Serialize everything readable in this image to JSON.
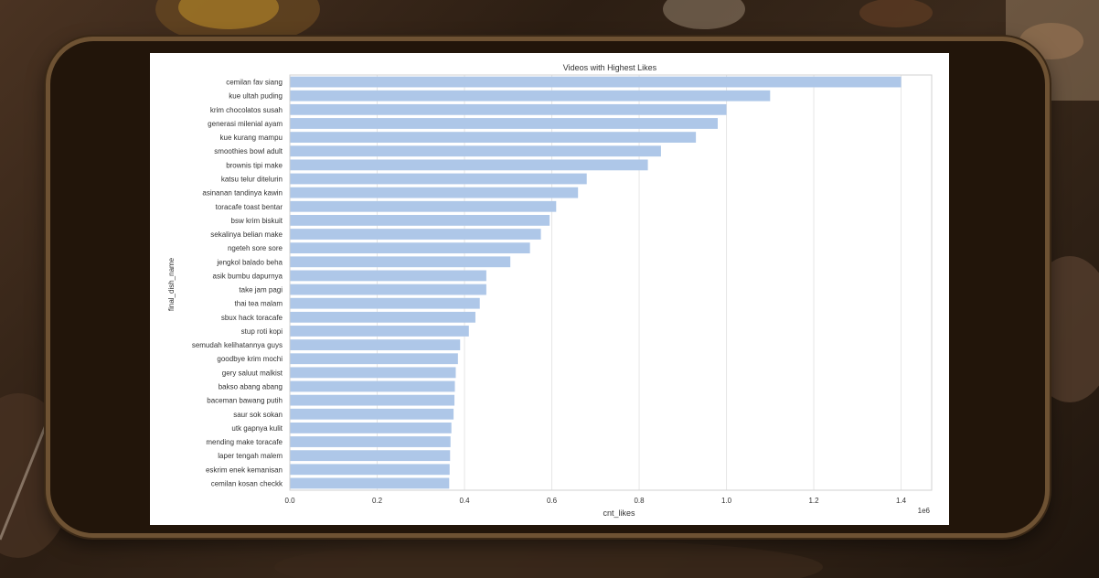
{
  "colors": {
    "bar": "#aec7e8",
    "grid": "#e6e6e6",
    "text": "#333333",
    "frame_border": "#6e5233",
    "frame_fill": "#22150a"
  },
  "chart_data": {
    "type": "bar",
    "orientation": "horizontal",
    "title": "Videos with Highest Likes",
    "xlabel": "cnt_likes",
    "ylabel": "final_dish_name",
    "x_offset_label": "1e6",
    "xlim": [
      0,
      1.47
    ],
    "xticks": [
      0.0,
      0.2,
      0.4,
      0.6,
      0.8,
      1.0,
      1.2,
      1.4
    ],
    "xtick_labels": [
      "0.0",
      "0.2",
      "0.4",
      "0.6",
      "0.8",
      "1.0",
      "1.2",
      "1.4"
    ],
    "grid": true,
    "categories": [
      "cemilan fav siang",
      "kue ultah puding",
      "krim chocolatos susah",
      "generasi milenial ayam",
      "kue kurang mampu",
      "smoothies bowl adult",
      "brownis tipi make",
      "katsu telur ditelurin",
      "asinanan tandinya kawin",
      "toracafe toast bentar",
      "bsw krim biskuit",
      "sekalinya belian make",
      "ngeteh sore sore",
      "jengkol balado beha",
      "asik bumbu dapurnya",
      "take jam pagi",
      "thai tea malam",
      "sbux hack toracafe",
      "stup roti kopi",
      "semudah kelihatannya guys",
      "goodbye krim mochi",
      "gery saluut malkist",
      "bakso abang abang",
      "baceman bawang putih",
      "saur sok sokan",
      "utk gapnya kulit",
      "mending make toracafe",
      "laper tengah malem",
      "eskrim enek kemanisan",
      "cemilan kosan checkk"
    ],
    "values": [
      1.4,
      1.1,
      1.0,
      0.98,
      0.93,
      0.85,
      0.82,
      0.68,
      0.66,
      0.61,
      0.595,
      0.575,
      0.55,
      0.505,
      0.45,
      0.45,
      0.435,
      0.425,
      0.41,
      0.39,
      0.385,
      0.38,
      0.378,
      0.377,
      0.375,
      0.37,
      0.368,
      0.367,
      0.366,
      0.365
    ]
  }
}
